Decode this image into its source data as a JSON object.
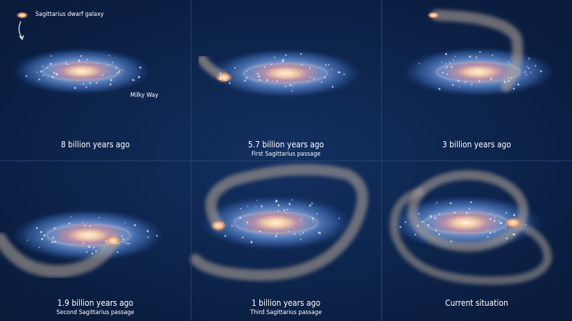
{
  "labels": {
    "dwarf_galaxy": "Sagittarius dwarf galaxy",
    "milky_way": "Milky Way"
  },
  "panels": [
    {
      "title": "8 billion years ago",
      "subtitle": ""
    },
    {
      "title": "5.7 billion years ago",
      "subtitle": "First Sagittarius passage"
    },
    {
      "title": "3 billion years ago",
      "subtitle": ""
    },
    {
      "title": "1.9 billion years ago",
      "subtitle": "Second Sagittarius passage"
    },
    {
      "title": "1 billion years ago",
      "subtitle": "Third Sagittarius passage"
    },
    {
      "title": "Current situation",
      "subtitle": ""
    }
  ],
  "colors": {
    "background": "#0c2248",
    "stream": "#b8a89a",
    "dwarf": "#f4b483"
  }
}
